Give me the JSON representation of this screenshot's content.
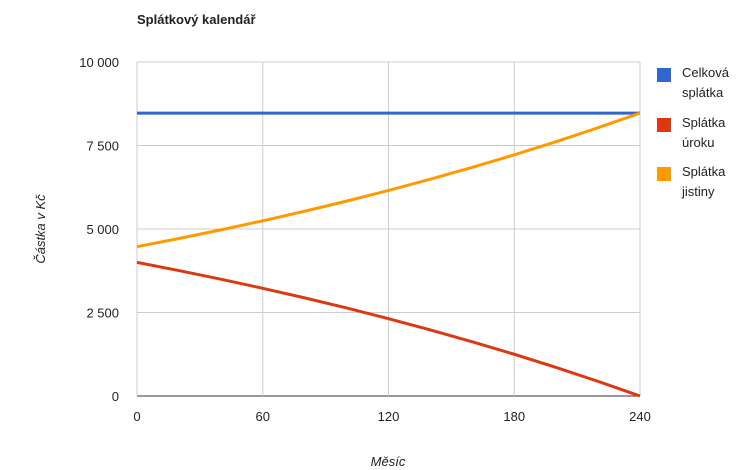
{
  "chart_data": {
    "type": "line",
    "title": "Splátkový kalendář",
    "x_label": "Měsíc",
    "y_label": "Částka v Kč",
    "x": [
      0,
      20,
      40,
      60,
      80,
      100,
      120,
      140,
      160,
      180,
      200,
      220,
      240
    ],
    "series": [
      {
        "name": "Celková splátka",
        "color": "#3366cc",
        "values": [
          8470,
          8470,
          8470,
          8470,
          8470,
          8470,
          8470,
          8470,
          8470,
          8470,
          8470,
          8470,
          8470
        ]
      },
      {
        "name": "Splátka úroku",
        "color": "#dc3912",
        "values": [
          4000,
          3755,
          3497,
          3225,
          2938,
          2636,
          2316,
          1979,
          1624,
          1250,
          855,
          438,
          0
        ]
      },
      {
        "name": "Splátka jistiny",
        "color": "#ff9900",
        "values": [
          4470,
          4715,
          4973,
          5245,
          5532,
          5834,
          6154,
          6491,
          6846,
          7220,
          7615,
          8032,
          8470
        ]
      }
    ],
    "xlim": [
      0,
      240
    ],
    "xticks": [
      0,
      60,
      120,
      180,
      240
    ],
    "ylim": [
      0,
      10000
    ],
    "yticks": [
      0,
      {
        "value": 2500,
        "label": "2 500"
      },
      {
        "value": 5000,
        "label": "5 000"
      },
      {
        "value": 7500,
        "label": "7 500"
      },
      {
        "value": 10000,
        "label": "10 000"
      }
    ],
    "grid": true,
    "legend": "right"
  }
}
